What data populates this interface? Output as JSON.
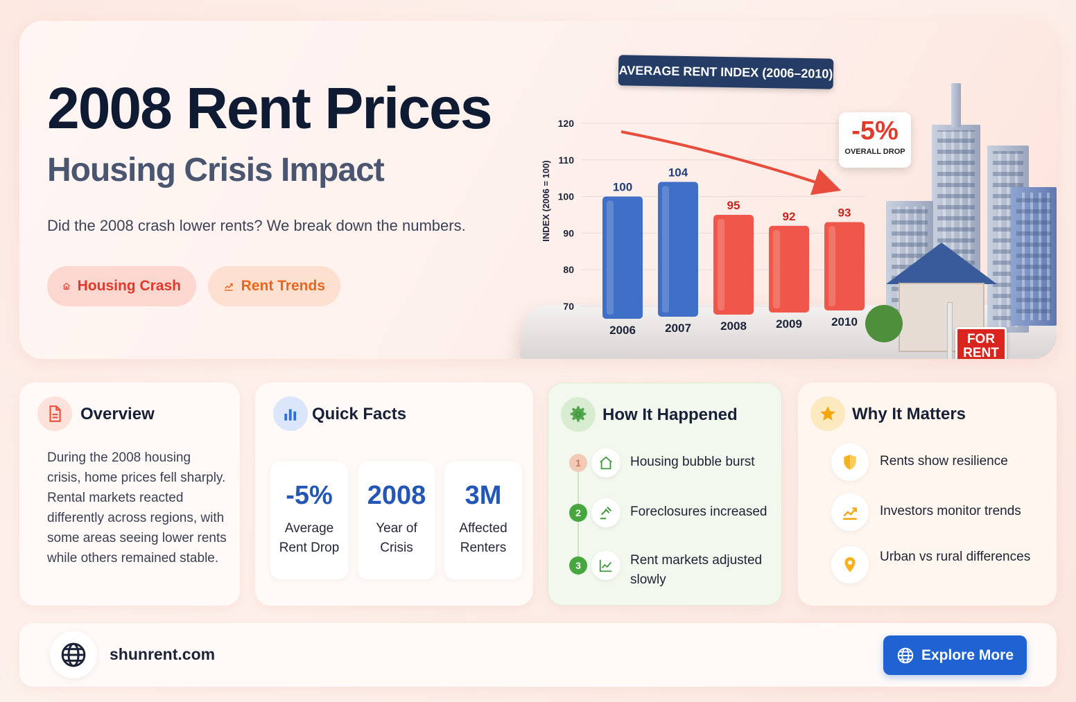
{
  "hero": {
    "title": "2008 Rent Prices",
    "subtitle": "Housing Crisis Impact",
    "description": "Did the 2008 crash lower rents? We break down the numbers.",
    "tags": [
      {
        "label": "Housing Crash",
        "icon": "house-icon",
        "color": "#e0392b"
      },
      {
        "label": "Rent Trends",
        "icon": "trend-up-icon",
        "color": "#e8661e"
      }
    ]
  },
  "chart_data": {
    "type": "bar",
    "title": "AVERAGE RENT INDEX (2006–2010)",
    "ylabel": "INDEX (2006 = 100)",
    "xlabel": "",
    "categories": [
      "2006",
      "2007",
      "2008",
      "2009",
      "2010"
    ],
    "values": [
      100,
      104,
      95,
      92,
      93
    ],
    "bar_colors": [
      "#3f6fc7",
      "#3f6fc7",
      "#f0574a",
      "#f0574a",
      "#f0574a"
    ],
    "label_colors": [
      "#1f3e7a",
      "#1f3e7a",
      "#c9251b",
      "#c9251b",
      "#c9251b"
    ],
    "yticks": [
      70,
      80,
      90,
      100,
      110,
      120
    ],
    "ylim": [
      70,
      120
    ],
    "grid": true,
    "annotation": {
      "value": "-5%",
      "label": "OVERALL DROP"
    }
  },
  "illustration": {
    "sign_line1": "FOR",
    "sign_line2": "RENT"
  },
  "overview": {
    "title": "Overview",
    "icon": "document-icon",
    "text": "During the 2008 housing crisis, home prices fell sharply. Rental markets reacted differently across regions, with some areas seeing lower rents while others remained stable."
  },
  "quick_facts": {
    "title": "Quick Facts",
    "icon": "bar-chart-icon",
    "facts": [
      {
        "value": "-5%",
        "label": "Average Rent Drop"
      },
      {
        "value": "2008",
        "label": "Year of Crisis"
      },
      {
        "value": "3M",
        "label": "Affected Renters"
      }
    ]
  },
  "how_it_happened": {
    "title": "How It Happened",
    "icon": "gear-icon",
    "steps": [
      {
        "num": "1",
        "text": "Housing bubble burst",
        "icon": "house-icon"
      },
      {
        "num": "2",
        "text": "Foreclosures increased",
        "icon": "gavel-icon"
      },
      {
        "num": "3",
        "text": "Rent markets adjusted slowly",
        "icon": "line-chart-icon"
      }
    ]
  },
  "why_it_matters": {
    "title": "Why It Matters",
    "icon": "star-icon",
    "items": [
      {
        "text": "Rents show resilience",
        "icon": "shield-icon"
      },
      {
        "text": "Investors monitor trends",
        "icon": "trend-up-icon"
      },
      {
        "text": "Urban vs rural differences",
        "icon": "location-pin-icon"
      }
    ]
  },
  "footer": {
    "site": "shunrent.com",
    "icon": "globe-icon",
    "button_label": "Explore More"
  }
}
